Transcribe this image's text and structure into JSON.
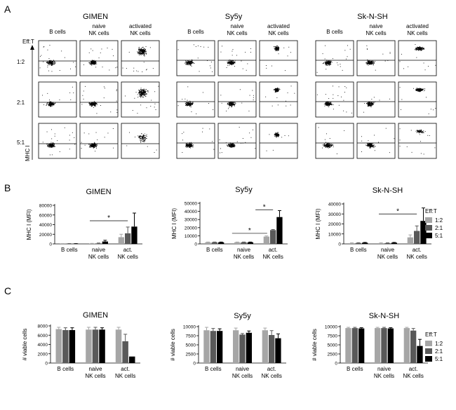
{
  "panel_labels": [
    "A",
    "B",
    "C"
  ],
  "cell_lines": [
    "GIMEN",
    "Sy5y",
    "Sk-N-SH"
  ],
  "flow": {
    "columns": [
      [
        "B cells"
      ],
      [
        "naive",
        "NK cells"
      ],
      [
        "activated",
        "NK cells"
      ]
    ],
    "rows": [
      "1:2",
      "2:1",
      "5:1"
    ],
    "row_axis_label": "Eff:T",
    "y_axis_label": "MHC I"
  },
  "bar_categories": [
    [
      "B cells"
    ],
    [
      "naive",
      "NK cells"
    ],
    [
      "act.",
      "NK cells"
    ]
  ],
  "legend": {
    "title": "Eff:T",
    "entries": [
      "1:2",
      "2:1",
      "5:1"
    ],
    "colors": [
      "#a6a6a6",
      "#595959",
      "#000000"
    ]
  },
  "chart_data": [
    {
      "type": "bar",
      "panel": "B",
      "title": "GIMEN",
      "ylabel": "MHC I (MFI)",
      "ylim": [
        0,
        80000
      ],
      "yticks": [
        "0",
        "20000",
        "40000",
        "60000",
        "80000"
      ],
      "categories": [
        "B cells",
        "naive NK cells",
        "act. NK cells"
      ],
      "series": [
        {
          "name": "1:2",
          "values": [
            400,
            600,
            14000
          ],
          "errors": [
            200,
            500,
            6000
          ]
        },
        {
          "name": "2:1",
          "values": [
            500,
            1000,
            22000
          ],
          "errors": [
            200,
            800,
            13000
          ]
        },
        {
          "name": "5:1",
          "values": [
            400,
            5000,
            36000
          ],
          "errors": [
            200,
            2500,
            28000
          ]
        }
      ],
      "significance": [
        {
          "label": "*",
          "from": 1.2,
          "to": 2.5,
          "y": 48000
        }
      ]
    },
    {
      "type": "bar",
      "panel": "B",
      "title": "Sy5y",
      "ylabel": "MHC I (MFI)",
      "ylim": [
        0,
        50000
      ],
      "yticks": [
        "0",
        "10000",
        "20000",
        "30000",
        "40000",
        "50000"
      ],
      "categories": [
        "B cells",
        "naive NK cells",
        "act. NK cells"
      ],
      "series": [
        {
          "name": "1:2",
          "values": [
            2000,
            2000,
            9000
          ],
          "errors": [
            300,
            300,
            800
          ]
        },
        {
          "name": "2:1",
          "values": [
            2000,
            2000,
            17000
          ],
          "errors": [
            300,
            300,
            700
          ]
        },
        {
          "name": "5:1",
          "values": [
            2000,
            2000,
            33000
          ],
          "errors": [
            300,
            300,
            8000
          ]
        }
      ],
      "significance": [
        {
          "label": "*",
          "from": 1.1,
          "to": 2.3,
          "y": 13000
        },
        {
          "label": "*",
          "from": 1.9,
          "to": 2.5,
          "y": 42000
        }
      ]
    },
    {
      "type": "bar",
      "panel": "B",
      "title": "Sk-N-SH",
      "ylabel": "MHC I (MFI)",
      "ylim": [
        0,
        40000
      ],
      "yticks": [
        "0",
        "10000",
        "20000",
        "30000",
        "40000"
      ],
      "categories": [
        "B cells",
        "naive NK cells",
        "act. NK cells"
      ],
      "series": [
        {
          "name": "1:2",
          "values": [
            800,
            800,
            6500
          ],
          "errors": [
            300,
            300,
            2500
          ]
        },
        {
          "name": "2:1",
          "values": [
            900,
            800,
            13000
          ],
          "errors": [
            300,
            300,
            5000
          ]
        },
        {
          "name": "5:1",
          "values": [
            1200,
            1200,
            23000
          ],
          "errors": [
            300,
            300,
            13000
          ]
        }
      ],
      "significance": [
        {
          "label": "*",
          "from": 1.2,
          "to": 2.5,
          "y": 30000
        }
      ]
    },
    {
      "type": "bar",
      "panel": "C",
      "title": "GIMEN",
      "ylabel": "# viable cells",
      "ylim": [
        0,
        8000
      ],
      "yticks": [
        "0",
        "2000",
        "4000",
        "6000",
        "8000"
      ],
      "categories": [
        "B cells",
        "naive NK cells",
        "act. NK cells"
      ],
      "series": [
        {
          "name": "1:2",
          "values": [
            7300,
            7200,
            7200
          ],
          "errors": [
            400,
            500,
            500
          ]
        },
        {
          "name": "2:1",
          "values": [
            7100,
            7200,
            4700
          ],
          "errors": [
            500,
            500,
            1500
          ]
        },
        {
          "name": "5:1",
          "values": [
            7100,
            7200,
            1400
          ],
          "errors": [
            500,
            400,
            0
          ]
        }
      ]
    },
    {
      "type": "bar",
      "panel": "C",
      "title": "Sy5y",
      "ylabel": "# viable cells",
      "ylim": [
        0,
        10000
      ],
      "yticks": [
        "0",
        "2500",
        "5000",
        "7500",
        "10000"
      ],
      "categories": [
        "B cells",
        "naive NK cells",
        "act. NK cells"
      ],
      "series": [
        {
          "name": "1:2",
          "values": [
            9000,
            9000,
            9000
          ],
          "errors": [
            800,
            600,
            600
          ]
        },
        {
          "name": "2:1",
          "values": [
            8800,
            7800,
            7700
          ],
          "errors": [
            700,
            300,
            1200
          ]
        },
        {
          "name": "5:1",
          "values": [
            8800,
            8300,
            6800
          ],
          "errors": [
            600,
            500,
            1200
          ]
        }
      ]
    },
    {
      "type": "bar",
      "panel": "C",
      "title": "Sk-N-SH",
      "ylabel": "# viable cells",
      "ylim": [
        0,
        10000
      ],
      "yticks": [
        "0",
        "2500",
        "5000",
        "7500",
        "10000"
      ],
      "categories": [
        "B cells",
        "naive NK cells",
        "act. NK cells"
      ],
      "series": [
        {
          "name": "1:2",
          "values": [
            9600,
            9600,
            9600
          ],
          "errors": [
            200,
            200,
            200
          ]
        },
        {
          "name": "2:1",
          "values": [
            9600,
            9600,
            8900
          ],
          "errors": [
            200,
            200,
            600
          ]
        },
        {
          "name": "5:1",
          "values": [
            9500,
            9500,
            4700
          ],
          "errors": [
            200,
            200,
            1800
          ]
        }
      ]
    }
  ]
}
